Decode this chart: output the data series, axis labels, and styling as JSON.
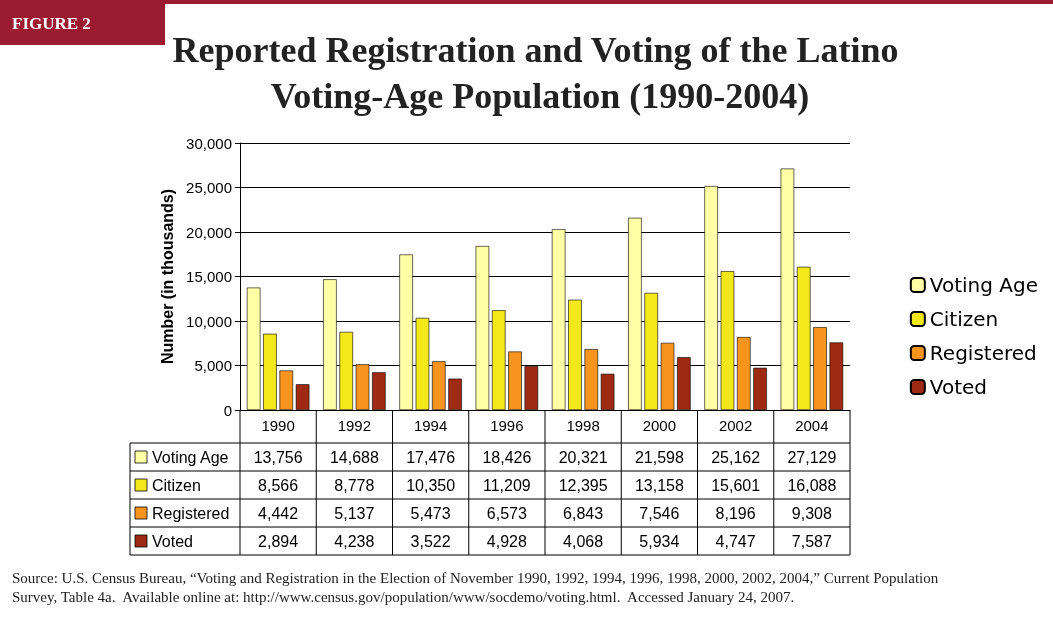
{
  "chart_data": {
    "type": "bar",
    "title": "Reported Registration and Voting of the Latino Voting-Age Population (1990-2004)",
    "ylabel": "Number (in thousands)",
    "annotations": [
      "FIGURE 2",
      "Source: U.S. Census Bureau, “Voting and Registration in the Election of November 1990, 1992, 1994, 1996, 1998, 2000, 2002, 2004,” Current Population Survey, Table 4a.  Available online at: http://www.census.gov/population/www/socdemo/voting.html.  Accessed January 24, 2007."
    ],
    "categories": [
      "1990",
      "1992",
      "1994",
      "1996",
      "1998",
      "2000",
      "2002",
      "2004"
    ],
    "series": [
      {
        "name": "Voting Age",
        "color": "#ffffa6",
        "values": [
          13756,
          14688,
          17476,
          18426,
          20321,
          21598,
          25162,
          27129
        ],
        "value_labels": [
          "13,756",
          "14,688",
          "17,476",
          "18,426",
          "20,321",
          "21,598",
          "25,162",
          "27,129"
        ]
      },
      {
        "name": "Citizen",
        "color": "#f2e81a",
        "values": [
          8566,
          8778,
          10350,
          11209,
          12395,
          13158,
          15601,
          16088
        ],
        "value_labels": [
          "8,566",
          "8,778",
          "10,350",
          "11,209",
          "12,395",
          "13,158",
          "15,601",
          "16,088"
        ]
      },
      {
        "name": "Registered",
        "color": "#f7941d",
        "values": [
          4442,
          5137,
          5473,
          6573,
          6843,
          7546,
          8196,
          9308
        ],
        "value_labels": [
          "4,442",
          "5,137",
          "5,473",
          "6,573",
          "6,843",
          "7,546",
          "8,196",
          "9,308"
        ]
      },
      {
        "name": "Voted",
        "color": "#9e2a14",
        "values": [
          2894,
          4238,
          3522,
          4928,
          4068,
          5934,
          4747,
          7587
        ],
        "value_labels": [
          "2,894",
          "4,238",
          "3,522",
          "4,928",
          "4,068",
          "5,934",
          "4,747",
          "7,587"
        ]
      }
    ],
    "ylim": [
      0,
      30000
    ],
    "yticks": [
      0,
      {
        "value": 5000,
        "label": "5,000"
      },
      {
        "value": 10000,
        "label": "10,000"
      },
      {
        "value": 15000,
        "label": "15,000"
      },
      {
        "value": 20000,
        "label": "20,000"
      },
      {
        "value": 25000,
        "label": "25,000"
      },
      {
        "value": 30000,
        "label": "30,000"
      }
    ],
    "grid": "y",
    "legend": "right"
  }
}
